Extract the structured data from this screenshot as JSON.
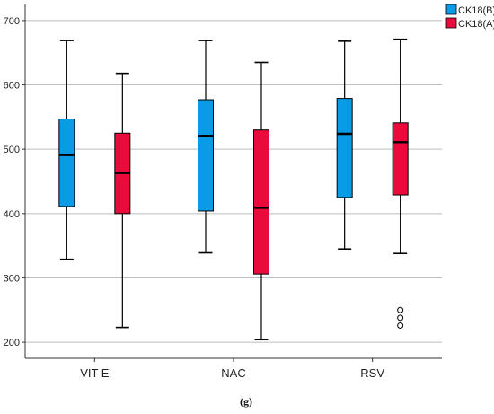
{
  "chart_data": {
    "type": "box",
    "categories": [
      "VIT E",
      "NAC",
      "RSV"
    ],
    "ylim": [
      175,
      725
    ],
    "yticks": [
      200,
      300,
      400,
      500,
      600,
      700
    ],
    "ytick_labels": [
      "200",
      "300",
      "400",
      "500",
      "600",
      "700"
    ],
    "grid": true,
    "legend_position": "top-right",
    "series": [
      {
        "name": "CK18(B)",
        "color": "#0a9be6",
        "boxes": [
          {
            "min": 329,
            "q1": 411,
            "median": 491,
            "q3": 547,
            "max": 669,
            "outliers": []
          },
          {
            "min": 339,
            "q1": 404,
            "median": 521,
            "q3": 577,
            "max": 669,
            "outliers": []
          },
          {
            "min": 345,
            "q1": 425,
            "median": 524,
            "q3": 579,
            "max": 668,
            "outliers": []
          }
        ]
      },
      {
        "name": "CK18(A)",
        "color": "#eb0a3c",
        "boxes": [
          {
            "min": 223,
            "q1": 400,
            "median": 463,
            "q3": 525,
            "max": 618,
            "outliers": []
          },
          {
            "min": 204,
            "q1": 306,
            "median": 409,
            "q3": 530,
            "max": 635,
            "outliers": []
          },
          {
            "min": 338,
            "q1": 429,
            "median": 511,
            "q3": 541,
            "max": 671,
            "outliers": [
              226,
              238,
              250
            ]
          }
        ]
      }
    ]
  },
  "caption": "(g)"
}
